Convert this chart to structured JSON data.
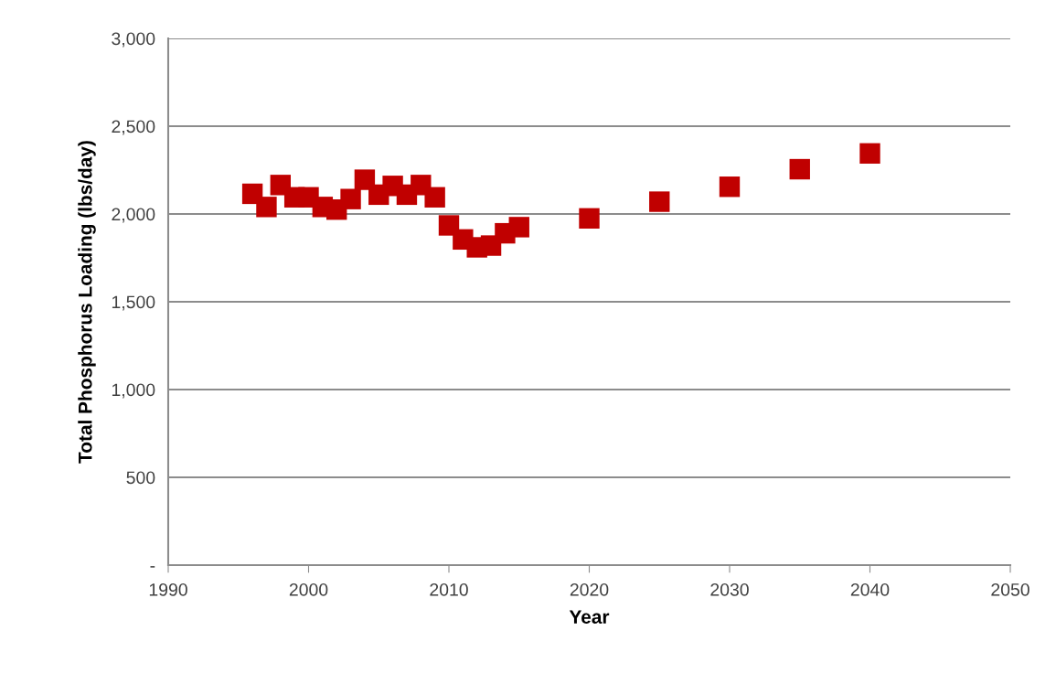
{
  "chart_data": {
    "type": "scatter",
    "xlabel": "Year",
    "ylabel": "Total Phosphorus Loading (lbs/day)",
    "x": [
      1996,
      1997,
      1998,
      1999,
      2000,
      2001,
      2002,
      2003,
      2004,
      2005,
      2006,
      2007,
      2008,
      2009,
      2010,
      2011,
      2012,
      2013,
      2014,
      2015,
      2020,
      2025,
      2030,
      2035,
      2040
    ],
    "series": [
      {
        "color": "#c00000",
        "values": [
          2115,
          2040,
          2165,
          2095,
          2095,
          2040,
          2025,
          2085,
          2195,
          2110,
          2160,
          2110,
          2165,
          2095,
          1935,
          1855,
          1810,
          1820,
          1890,
          1925,
          1975,
          2070,
          2155,
          2255,
          2345
        ]
      }
    ],
    "marker": "square",
    "grid": "y",
    "legend": false,
    "xlim": [
      1990,
      2050
    ],
    "xticks": [
      1990,
      2000,
      2010,
      2020,
      2030,
      2040,
      2050
    ],
    "ylim": [
      0,
      3000
    ],
    "yticks": [
      {
        "value": 0,
        "label": "-"
      },
      {
        "value": 500,
        "label": "500"
      },
      {
        "value": 1000,
        "label": "1,000"
      },
      {
        "value": 1500,
        "label": "1,500"
      },
      {
        "value": 2000,
        "label": "2,000"
      },
      {
        "value": 2500,
        "label": "2,500"
      },
      {
        "value": 3000,
        "label": "3,000"
      }
    ]
  }
}
